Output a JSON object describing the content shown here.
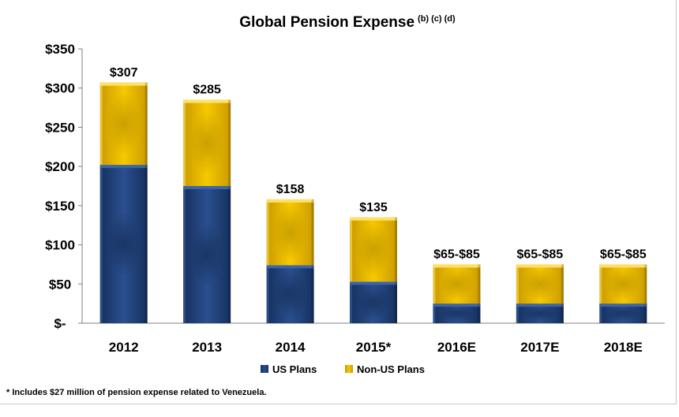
{
  "chart_data": {
    "type": "bar",
    "stacked": true,
    "title": "Global Pension Expense",
    "title_superscript": "(b) (c) (d)",
    "categories": [
      "2012",
      "2013",
      "2014",
      "2015*",
      "2016E",
      "2017E",
      "2018E"
    ],
    "series": [
      {
        "name": "US Plans",
        "color": "#1f3e78",
        "values": [
          202,
          175,
          74,
          53,
          25,
          25,
          25
        ]
      },
      {
        "name": "Non-US Plans",
        "color": "#f0c000",
        "values": [
          105,
          110,
          84,
          82,
          50,
          50,
          50
        ]
      }
    ],
    "totals_labels": [
      "$307",
      "$285",
      "$158",
      "$135",
      "$65-$85",
      "$65-$85",
      "$65-$85"
    ],
    "y_ticks": [
      0,
      50,
      100,
      150,
      200,
      250,
      300,
      350
    ],
    "y_tick_labels": [
      "$-",
      "$50",
      "$100",
      "$150",
      "$200",
      "$250",
      "$300",
      "$350"
    ],
    "ylim": [
      0,
      350
    ],
    "grid": false,
    "legend_position": "bottom"
  },
  "footnote": "* Includes $27 million of pension expense related to Venezuela."
}
